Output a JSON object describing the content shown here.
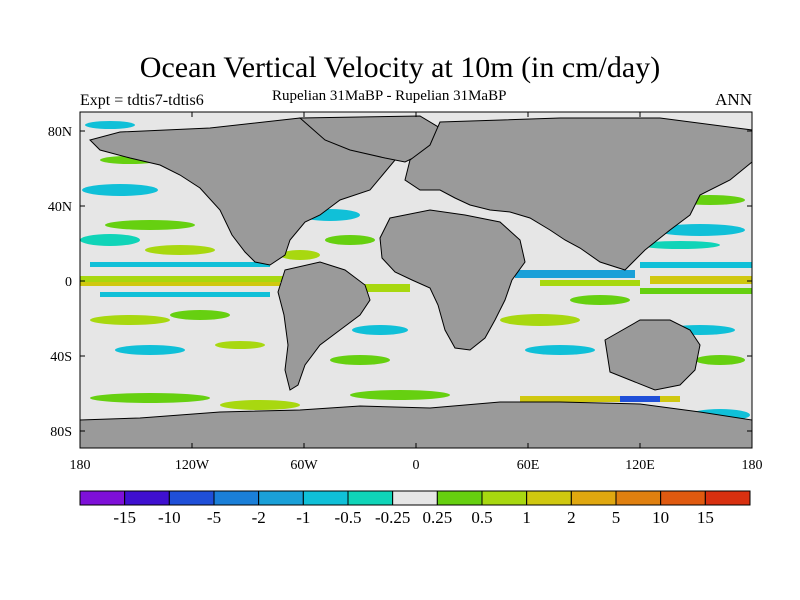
{
  "title": "Ocean Vertical Velocity at 10m (in cm/day)",
  "experiment_label": "Expt = tdtis7-tdtis6",
  "subtitle": "Rupelian 31MaBP - Rupelian 31MaBP",
  "season": "ANN",
  "lat_ticks": [
    "80N",
    "40N",
    "0",
    "40S",
    "80S"
  ],
  "lon_ticks": [
    "180",
    "120W",
    "60W",
    "0",
    "60E",
    "120E",
    "180"
  ],
  "colorbar": {
    "labels": [
      "-15",
      "-10",
      "-5",
      "-2",
      "-1",
      "-0.5",
      "-0.25",
      "0.25",
      "0.5",
      "1",
      "2",
      "5",
      "10",
      "15"
    ],
    "colors": [
      "#7e10d8",
      "#3f10d0",
      "#1f4fd8",
      "#1a7fd8",
      "#1aa0d8",
      "#10c0d8",
      "#10d4b8",
      "#e6e6e6",
      "#66d010",
      "#a8d810",
      "#d0c810",
      "#e0a810",
      "#e08010",
      "#e05a10",
      "#d83010"
    ]
  },
  "colors": {
    "land": "#9a9a9a",
    "neutral_ocean": "#e6e6e6",
    "coast": "#000000"
  }
}
